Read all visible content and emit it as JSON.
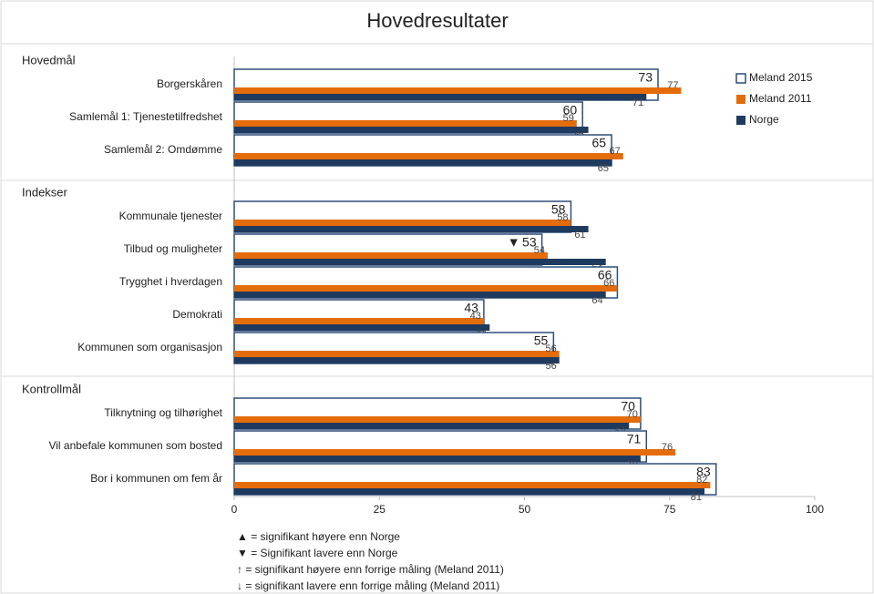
{
  "chart_data": {
    "type": "bar",
    "title": "Hovedresultater",
    "group_labels": [
      "Hovedmål",
      "Indekser",
      "Kontrollmål"
    ],
    "categories": [
      "Borgerskåren",
      "Samlemål 1: Tjenestetilfredshet",
      "Samlemål 2: Omdømme",
      "Kommunale tjenester",
      "Tilbud og muligheter",
      "Trygghet i hverdagen",
      "Demokrati",
      "Kommunen som organisasjon",
      "Tilknytning og tilhørighet",
      "Vil anbefale kommunen som bosted",
      "Bor i kommunen om fem år"
    ],
    "series": [
      {
        "name": "Meland 2015",
        "color": "#ffffff",
        "values": [
          73,
          60,
          65,
          58,
          53,
          66,
          43,
          55,
          70,
          71,
          83
        ],
        "significance": [
          null,
          null,
          null,
          null,
          "▼",
          null,
          null,
          null,
          null,
          null,
          null
        ]
      },
      {
        "name": "Meland 2011",
        "color": "#e46c0a",
        "values": [
          77,
          59,
          67,
          58,
          54,
          66,
          43,
          56,
          70,
          76,
          82
        ]
      },
      {
        "name": "Norge",
        "color": "#1f3a5f",
        "values": [
          71,
          61,
          65,
          61,
          64,
          64,
          44,
          56,
          68,
          70,
          81
        ]
      }
    ],
    "xlim": [
      0,
      100
    ],
    "xticks": [
      0,
      25,
      50,
      75,
      100
    ],
    "outline_color": "#2f4d7a",
    "notes": [
      "▲ = signifikant høyere enn Norge",
      "▼ = Signifikant lavere enn Norge",
      "↑ = signifikant høyere enn forrige måling (Meland 2011)",
      "↓ = signifikant lavere enn forrige måling (Meland 2011)"
    ]
  }
}
